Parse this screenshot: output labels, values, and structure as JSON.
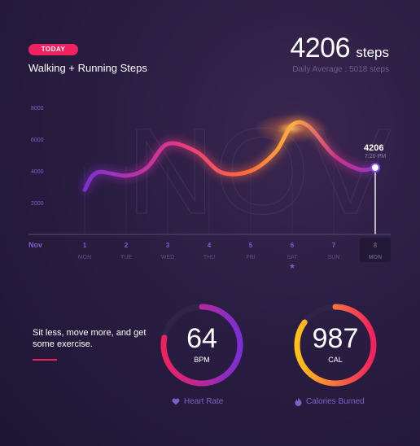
{
  "header": {
    "badge": "TODAY",
    "title": "Walking + Running Steps",
    "steps_value": "4206",
    "steps_unit": "steps",
    "daily_average": "Daily Average : 5018 steps"
  },
  "watermark": "NOV",
  "colors": {
    "accent": "#f0215e",
    "curve_start": "#7b2fd6",
    "curve_mid": "#e0348c",
    "curve_peak": "#ffb040",
    "background": "#2a1d42"
  },
  "chart_data": {
    "type": "line",
    "month_label": "Nov",
    "x": [
      1,
      2,
      3,
      4,
      5,
      6,
      7,
      8
    ],
    "weekdays": [
      "MON",
      "TUE",
      "WED",
      "THU",
      "FRI",
      "SAT",
      "SUN",
      "MON"
    ],
    "y_ticks": [
      "8000",
      "6000",
      "4000",
      "2000"
    ],
    "ylim": [
      0,
      8000
    ],
    "points": [
      {
        "x": 0.0,
        "y": 2800
      },
      {
        "x": 0.3,
        "y": 3900
      },
      {
        "x": 1.0,
        "y": 3700
      },
      {
        "x": 1.5,
        "y": 4200
      },
      {
        "x": 2.0,
        "y": 5700
      },
      {
        "x": 2.7,
        "y": 5200
      },
      {
        "x": 3.3,
        "y": 3900
      },
      {
        "x": 4.0,
        "y": 4000
      },
      {
        "x": 4.6,
        "y": 5200
      },
      {
        "x": 5.0,
        "y": 6900
      },
      {
        "x": 5.4,
        "y": 6800
      },
      {
        "x": 6.0,
        "y": 5000
      },
      {
        "x": 6.6,
        "y": 4100
      },
      {
        "x": 7.0,
        "y": 4206
      }
    ],
    "selected_index": 7,
    "selected_value": "4206",
    "selected_time": "7:20 PM",
    "starred_index": 5
  },
  "summary": {
    "motivation": "Sit less, move more, and get some exercise."
  },
  "rings": [
    {
      "value": "64",
      "unit": "BPM",
      "caption": "Heart Rate",
      "icon": "heart-icon",
      "fraction": 0.78,
      "color_start": "#f0215e",
      "color_end": "#7b2fd6"
    },
    {
      "value": "987",
      "unit": "CAL",
      "caption": "Calories Burned",
      "icon": "flame-icon",
      "fraction": 0.85,
      "color_start": "#ffc21a",
      "color_end": "#f0215e"
    }
  ]
}
